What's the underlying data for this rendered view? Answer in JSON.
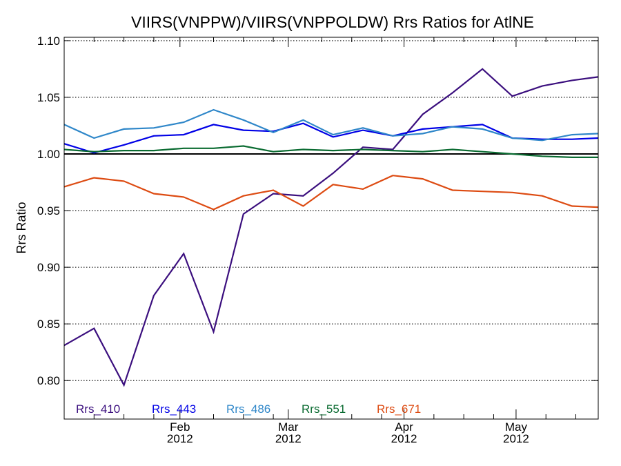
{
  "chart_data": {
    "type": "line",
    "title": "VIIRS(VNPPW)/VIIRS(VNPPOLDW)  Rrs Ratios for AtlNE",
    "xlabel": "",
    "ylabel": "Rrs Ratio",
    "ylim": [
      0.766,
      1.103
    ],
    "xlim": [
      "2012-01-01",
      "2012-05-23"
    ],
    "yticks": [
      0.8,
      0.85,
      0.9,
      0.95,
      1.0,
      1.05,
      1.1
    ],
    "ytick_labels": [
      "0.80",
      "0.85",
      "0.90",
      "0.95",
      "1.00",
      "1.05",
      "1.10"
    ],
    "xticks": [
      {
        "date": "2012-02-01",
        "month": "Feb",
        "year": "2012"
      },
      {
        "date": "2012-03-01",
        "month": "Mar",
        "year": "2012"
      },
      {
        "date": "2012-04-01",
        "month": "Apr",
        "year": "2012"
      },
      {
        "date": "2012-05-01",
        "month": "May",
        "year": "2012"
      }
    ],
    "minor_xticks": [
      "2012-01-09",
      "2012-01-17",
      "2012-01-25",
      "2012-02-10",
      "2012-02-18",
      "2012-02-26",
      "2012-03-10",
      "2012-03-18",
      "2012-03-26",
      "2012-04-09",
      "2012-04-17",
      "2012-04-25",
      "2012-05-09",
      "2012-05-17"
    ],
    "grid": "horizontal dotted at y ticks",
    "reference_line": 1.0,
    "legend_position": "bottom-left",
    "x": [
      "2012-01-01",
      "2012-01-09",
      "2012-01-17",
      "2012-01-25",
      "2012-02-02",
      "2012-02-10",
      "2012-02-18",
      "2012-02-26",
      "2012-03-05",
      "2012-03-13",
      "2012-03-21",
      "2012-03-29",
      "2012-04-06",
      "2012-04-14",
      "2012-04-22",
      "2012-04-30",
      "2012-05-08",
      "2012-05-16",
      "2012-05-23"
    ],
    "series": [
      {
        "name": "Rrs_410",
        "color": "#3b0f7e",
        "values": [
          0.831,
          0.846,
          0.796,
          0.875,
          0.912,
          0.843,
          0.947,
          0.965,
          0.963,
          0.983,
          1.006,
          1.004,
          1.035,
          1.054,
          1.075,
          1.051,
          1.06,
          1.065,
          1.068
        ]
      },
      {
        "name": "Rrs_443",
        "color": "#0000e6",
        "values": [
          1.009,
          1.001,
          1.008,
          1.016,
          1.017,
          1.026,
          1.021,
          1.02,
          1.027,
          1.015,
          1.021,
          1.016,
          1.022,
          1.024,
          1.026,
          1.014,
          1.013,
          1.013,
          1.014
        ]
      },
      {
        "name": "Rrs_486",
        "color": "#2f87c9",
        "values": [
          1.026,
          1.014,
          1.022,
          1.023,
          1.028,
          1.039,
          1.03,
          1.019,
          1.03,
          1.017,
          1.023,
          1.016,
          1.018,
          1.024,
          1.022,
          1.014,
          1.012,
          1.017,
          1.018
        ]
      },
      {
        "name": "Rrs_551",
        "color": "#0a6b31",
        "values": [
          1.004,
          1.002,
          1.003,
          1.003,
          1.005,
          1.005,
          1.007,
          1.002,
          1.004,
          1.003,
          1.004,
          1.003,
          1.002,
          1.004,
          1.002,
          1.0,
          0.998,
          0.997,
          0.997
        ]
      },
      {
        "name": "Rrs_671",
        "color": "#dd4b12",
        "values": [
          0.971,
          0.979,
          0.976,
          0.965,
          0.962,
          0.951,
          0.963,
          0.968,
          0.954,
          0.973,
          0.969,
          0.981,
          0.978,
          0.968,
          0.967,
          0.966,
          0.963,
          0.954,
          0.953
        ]
      }
    ]
  }
}
